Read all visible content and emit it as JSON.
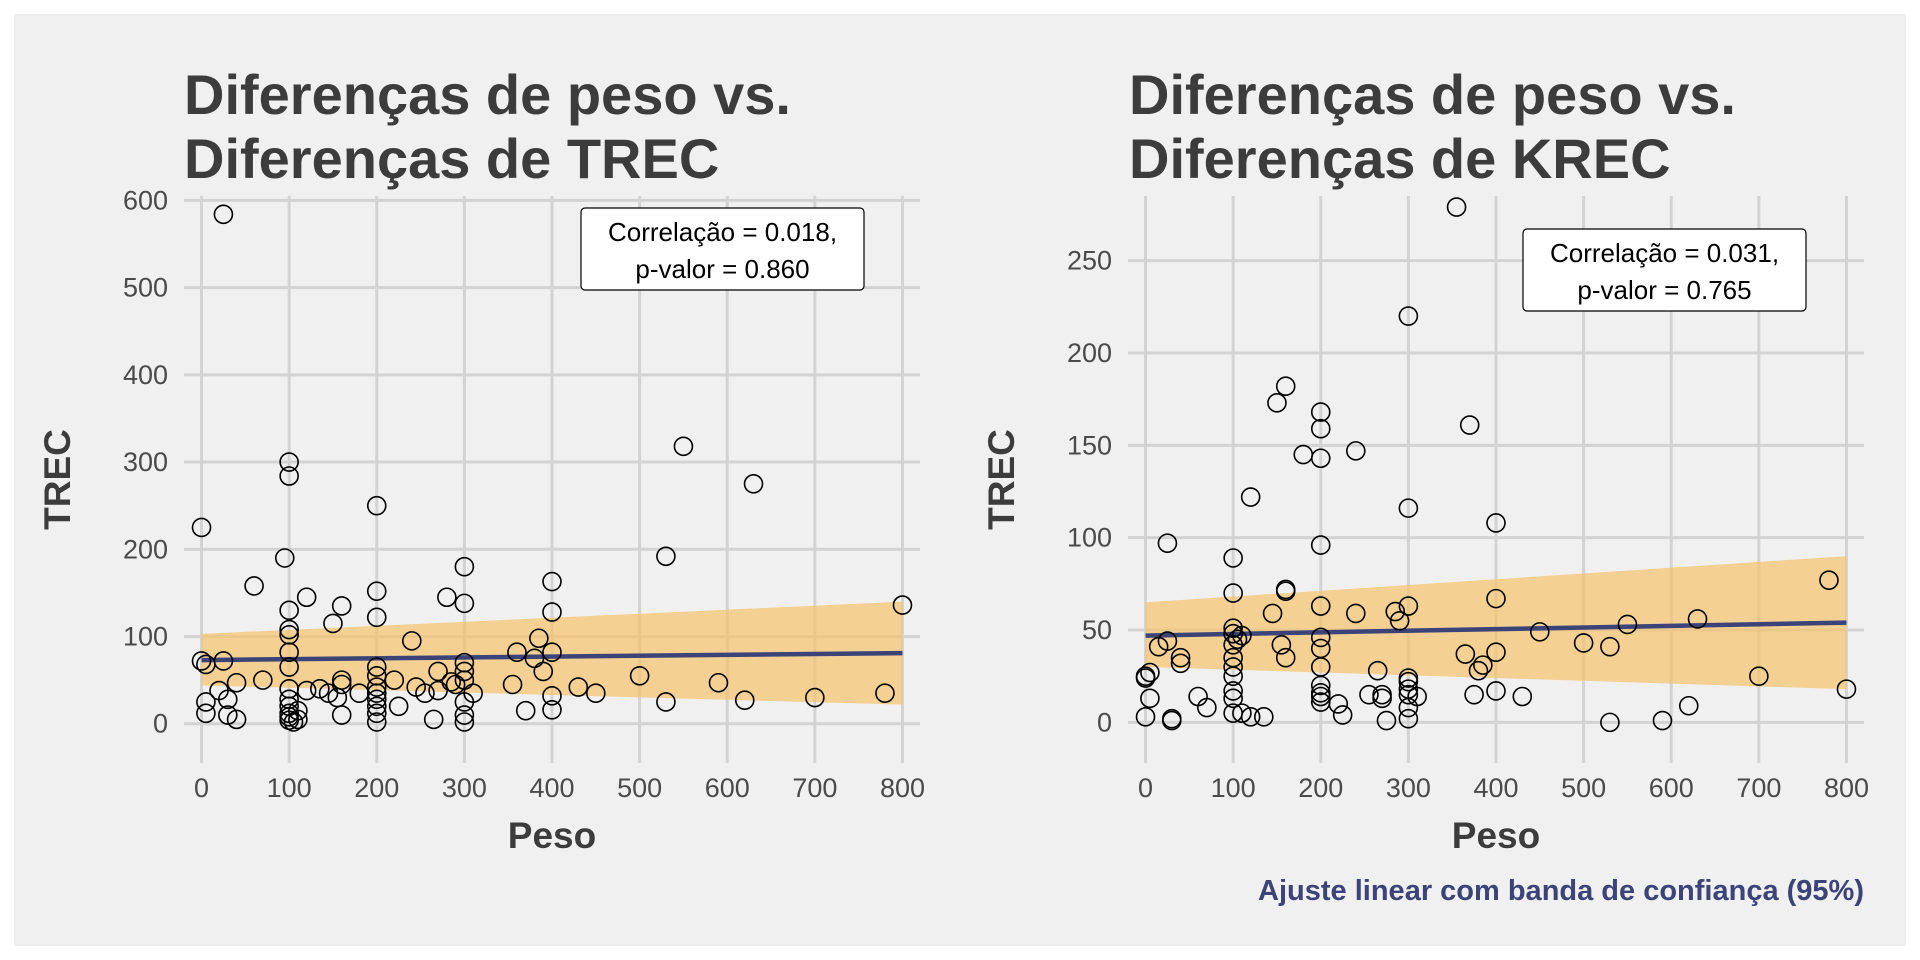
{
  "caption": "Ajuste linear com banda de confiança (95%)",
  "colors": {
    "background": "#f0f0f0",
    "grid": "#d3d3d3",
    "band": "#f5c26b",
    "fit_line": "#3b4378",
    "points": "#000000",
    "caption": "#3b4378"
  },
  "chart_data": [
    {
      "type": "scatter",
      "title": [
        "Diferenças de peso vs.",
        "Diferenças de TREC"
      ],
      "xlabel": "Peso",
      "ylabel": "TREC",
      "xlim": [
        -20,
        820
      ],
      "ylim": [
        -45,
        605
      ],
      "x_ticks": [
        0,
        100,
        200,
        300,
        400,
        500,
        600,
        700,
        800
      ],
      "y_ticks": [
        0,
        100,
        200,
        300,
        400,
        500,
        600
      ],
      "grid": true,
      "annotation": [
        "Correlação = 0.018,",
        "p-valor = 0.860"
      ],
      "fit": {
        "x": [
          0,
          800
        ],
        "y": [
          73,
          81
        ]
      },
      "band": {
        "x": [
          0,
          800
        ],
        "upper": [
          103,
          140
        ],
        "lower": [
          44,
          22
        ]
      },
      "points": [
        [
          25,
          584
        ],
        [
          0,
          225
        ],
        [
          0,
          72
        ],
        [
          5,
          68
        ],
        [
          5,
          25
        ],
        [
          5,
          12
        ],
        [
          20,
          38
        ],
        [
          25,
          72
        ],
        [
          30,
          10
        ],
        [
          30,
          28
        ],
        [
          40,
          5
        ],
        [
          40,
          47
        ],
        [
          60,
          158
        ],
        [
          70,
          50
        ],
        [
          95,
          190
        ],
        [
          100,
          300
        ],
        [
          100,
          284
        ],
        [
          100,
          130
        ],
        [
          100,
          108
        ],
        [
          100,
          102
        ],
        [
          100,
          82
        ],
        [
          100,
          65
        ],
        [
          100,
          40
        ],
        [
          100,
          28
        ],
        [
          100,
          20
        ],
        [
          100,
          12
        ],
        [
          100,
          8
        ],
        [
          100,
          4
        ],
        [
          105,
          2
        ],
        [
          110,
          15
        ],
        [
          110,
          5
        ],
        [
          120,
          145
        ],
        [
          120,
          38
        ],
        [
          135,
          40
        ],
        [
          145,
          35
        ],
        [
          150,
          115
        ],
        [
          155,
          30
        ],
        [
          160,
          135
        ],
        [
          160,
          50
        ],
        [
          160,
          45
        ],
        [
          160,
          10
        ],
        [
          180,
          35
        ],
        [
          200,
          250
        ],
        [
          200,
          152
        ],
        [
          200,
          122
        ],
        [
          200,
          65
        ],
        [
          200,
          55
        ],
        [
          200,
          42
        ],
        [
          200,
          35
        ],
        [
          200,
          28
        ],
        [
          200,
          20
        ],
        [
          200,
          12
        ],
        [
          200,
          2
        ],
        [
          220,
          50
        ],
        [
          225,
          20
        ],
        [
          240,
          95
        ],
        [
          245,
          42
        ],
        [
          255,
          35
        ],
        [
          265,
          5
        ],
        [
          270,
          60
        ],
        [
          270,
          38
        ],
        [
          280,
          145
        ],
        [
          285,
          48
        ],
        [
          290,
          45
        ],
        [
          300,
          180
        ],
        [
          300,
          138
        ],
        [
          300,
          70
        ],
        [
          300,
          60
        ],
        [
          300,
          50
        ],
        [
          300,
          25
        ],
        [
          300,
          10
        ],
        [
          300,
          2
        ],
        [
          310,
          35
        ],
        [
          355,
          45
        ],
        [
          360,
          82
        ],
        [
          370,
          15
        ],
        [
          380,
          75
        ],
        [
          385,
          98
        ],
        [
          390,
          60
        ],
        [
          400,
          163
        ],
        [
          400,
          128
        ],
        [
          400,
          82
        ],
        [
          400,
          32
        ],
        [
          400,
          16
        ],
        [
          430,
          42
        ],
        [
          450,
          35
        ],
        [
          500,
          55
        ],
        [
          530,
          192
        ],
        [
          530,
          25
        ],
        [
          550,
          318
        ],
        [
          590,
          47
        ],
        [
          620,
          27
        ],
        [
          630,
          275
        ],
        [
          700,
          30
        ],
        [
          780,
          35
        ],
        [
          800,
          136
        ]
      ]
    },
    {
      "type": "scatter",
      "title": [
        "Diferenças de peso vs.",
        "Diferenças de KREC"
      ],
      "xlabel": "Peso",
      "ylabel": "TREC",
      "xlim": [
        -20,
        820
      ],
      "ylim": [
        -22,
        285
      ],
      "x_ticks": [
        0,
        100,
        200,
        300,
        400,
        500,
        600,
        700,
        800
      ],
      "y_ticks": [
        0,
        50,
        100,
        150,
        200,
        250
      ],
      "grid": true,
      "annotation": [
        "Correlação = 0.031,",
        "p-valor = 0.765"
      ],
      "fit": {
        "x": [
          0,
          800
        ],
        "y": [
          47,
          54
        ]
      },
      "band": {
        "x": [
          0,
          800
        ],
        "upper": [
          65,
          90
        ],
        "lower": [
          30,
          18
        ]
      },
      "points": [
        [
          0,
          25
        ],
        [
          0,
          24
        ],
        [
          0,
          3
        ],
        [
          5,
          13
        ],
        [
          5,
          27
        ],
        [
          15,
          41
        ],
        [
          25,
          97
        ],
        [
          25,
          44
        ],
        [
          30,
          2
        ],
        [
          30,
          1
        ],
        [
          40,
          35
        ],
        [
          40,
          32
        ],
        [
          60,
          14
        ],
        [
          70,
          8
        ],
        [
          100,
          89
        ],
        [
          100,
          70
        ],
        [
          100,
          51
        ],
        [
          100,
          48
        ],
        [
          100,
          42
        ],
        [
          100,
          35
        ],
        [
          100,
          30
        ],
        [
          100,
          25
        ],
        [
          100,
          17
        ],
        [
          100,
          13
        ],
        [
          100,
          5
        ],
        [
          105,
          45
        ],
        [
          110,
          47
        ],
        [
          110,
          5
        ],
        [
          120,
          122
        ],
        [
          120,
          3
        ],
        [
          135,
          3
        ],
        [
          145,
          59
        ],
        [
          150,
          173
        ],
        [
          155,
          42
        ],
        [
          160,
          182
        ],
        [
          160,
          72
        ],
        [
          160,
          71
        ],
        [
          160,
          35
        ],
        [
          180,
          145
        ],
        [
          200,
          168
        ],
        [
          200,
          159
        ],
        [
          200,
          143
        ],
        [
          200,
          96
        ],
        [
          200,
          63
        ],
        [
          200,
          46
        ],
        [
          200,
          40
        ],
        [
          200,
          30
        ],
        [
          200,
          20
        ],
        [
          200,
          16
        ],
        [
          200,
          14
        ],
        [
          200,
          11
        ],
        [
          220,
          10
        ],
        [
          225,
          4
        ],
        [
          240,
          147
        ],
        [
          240,
          59
        ],
        [
          255,
          15
        ],
        [
          265,
          28
        ],
        [
          270,
          15
        ],
        [
          270,
          13
        ],
        [
          275,
          1
        ],
        [
          285,
          60
        ],
        [
          290,
          55
        ],
        [
          300,
          220
        ],
        [
          300,
          116
        ],
        [
          300,
          63
        ],
        [
          300,
          24
        ],
        [
          300,
          22
        ],
        [
          300,
          18
        ],
        [
          300,
          15
        ],
        [
          300,
          8
        ],
        [
          300,
          2
        ],
        [
          310,
          14
        ],
        [
          355,
          279
        ],
        [
          365,
          37
        ],
        [
          370,
          161
        ],
        [
          375,
          15
        ],
        [
          380,
          28
        ],
        [
          385,
          31
        ],
        [
          400,
          108
        ],
        [
          400,
          67
        ],
        [
          400,
          38
        ],
        [
          400,
          17
        ],
        [
          430,
          14
        ],
        [
          450,
          49
        ],
        [
          500,
          43
        ],
        [
          530,
          41
        ],
        [
          530,
          0
        ],
        [
          550,
          53
        ],
        [
          590,
          1
        ],
        [
          620,
          9
        ],
        [
          630,
          56
        ],
        [
          700,
          25
        ],
        [
          780,
          77
        ],
        [
          800,
          18
        ]
      ]
    }
  ]
}
